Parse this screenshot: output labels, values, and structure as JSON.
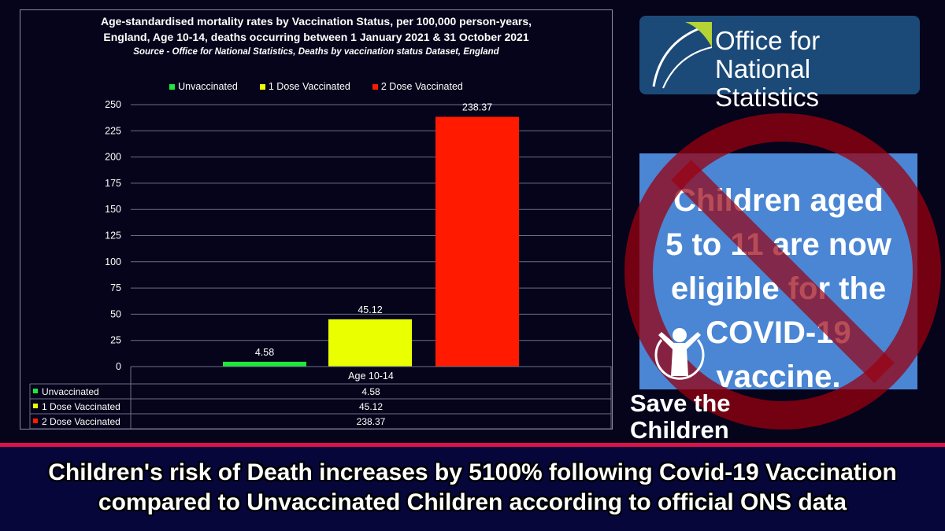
{
  "chart_data": {
    "type": "bar",
    "title": "Age-standardised mortality rates by Vaccination Status, per 100,000 person-years,",
    "title_line2": "England, Age 10-14, deaths occurring between 1 January 2021 & 31 October 2021",
    "subtitle": "Source - Office for National Statistics, Deaths by vaccination status Dataset, England",
    "categories": [
      "Age 10-14"
    ],
    "series": [
      {
        "name": "Unvaccinated",
        "values": [
          4.58
        ],
        "color": "#1ee63c"
      },
      {
        "name": "1 Dose Vaccinated",
        "values": [
          45.12
        ],
        "color": "#eaff00"
      },
      {
        "name": "2 Dose Vaccinated",
        "values": [
          238.37
        ],
        "color": "#ff1a00"
      }
    ],
    "data_labels": [
      "4.58",
      "45.12",
      "238.37"
    ],
    "ylim": [
      0,
      250
    ],
    "yticks": [
      0,
      25,
      50,
      75,
      100,
      125,
      150,
      175,
      200,
      225,
      250
    ],
    "grid": true,
    "legend": "top",
    "data_table": {
      "header": "Age 10-14",
      "rows": [
        {
          "label": "Unvaccinated",
          "value": "4.58"
        },
        {
          "label": "1 Dose Vaccinated",
          "value": "45.12"
        },
        {
          "label": "2 Dose Vaccinated",
          "value": "238.37"
        }
      ]
    }
  },
  "ons_logo": {
    "line1": "Office for",
    "line2": "National Statistics"
  },
  "poster": {
    "lines": [
      "Children aged",
      "5 to 11 are now",
      "eligible for the",
      "COVID-19",
      "vaccine."
    ]
  },
  "save_the_children": {
    "line1": "Save the",
    "line2": "Children"
  },
  "banner": {
    "line1": "Children's risk of Death increases by 5100% following Covid-19 Vaccination",
    "line2": "compared to Unvaccinated Children according to official ONS data"
  },
  "colors": {
    "background": "#05041a",
    "banner": "#06063a",
    "accent_line": "#e0104a",
    "prohibition": "#9a0010"
  }
}
